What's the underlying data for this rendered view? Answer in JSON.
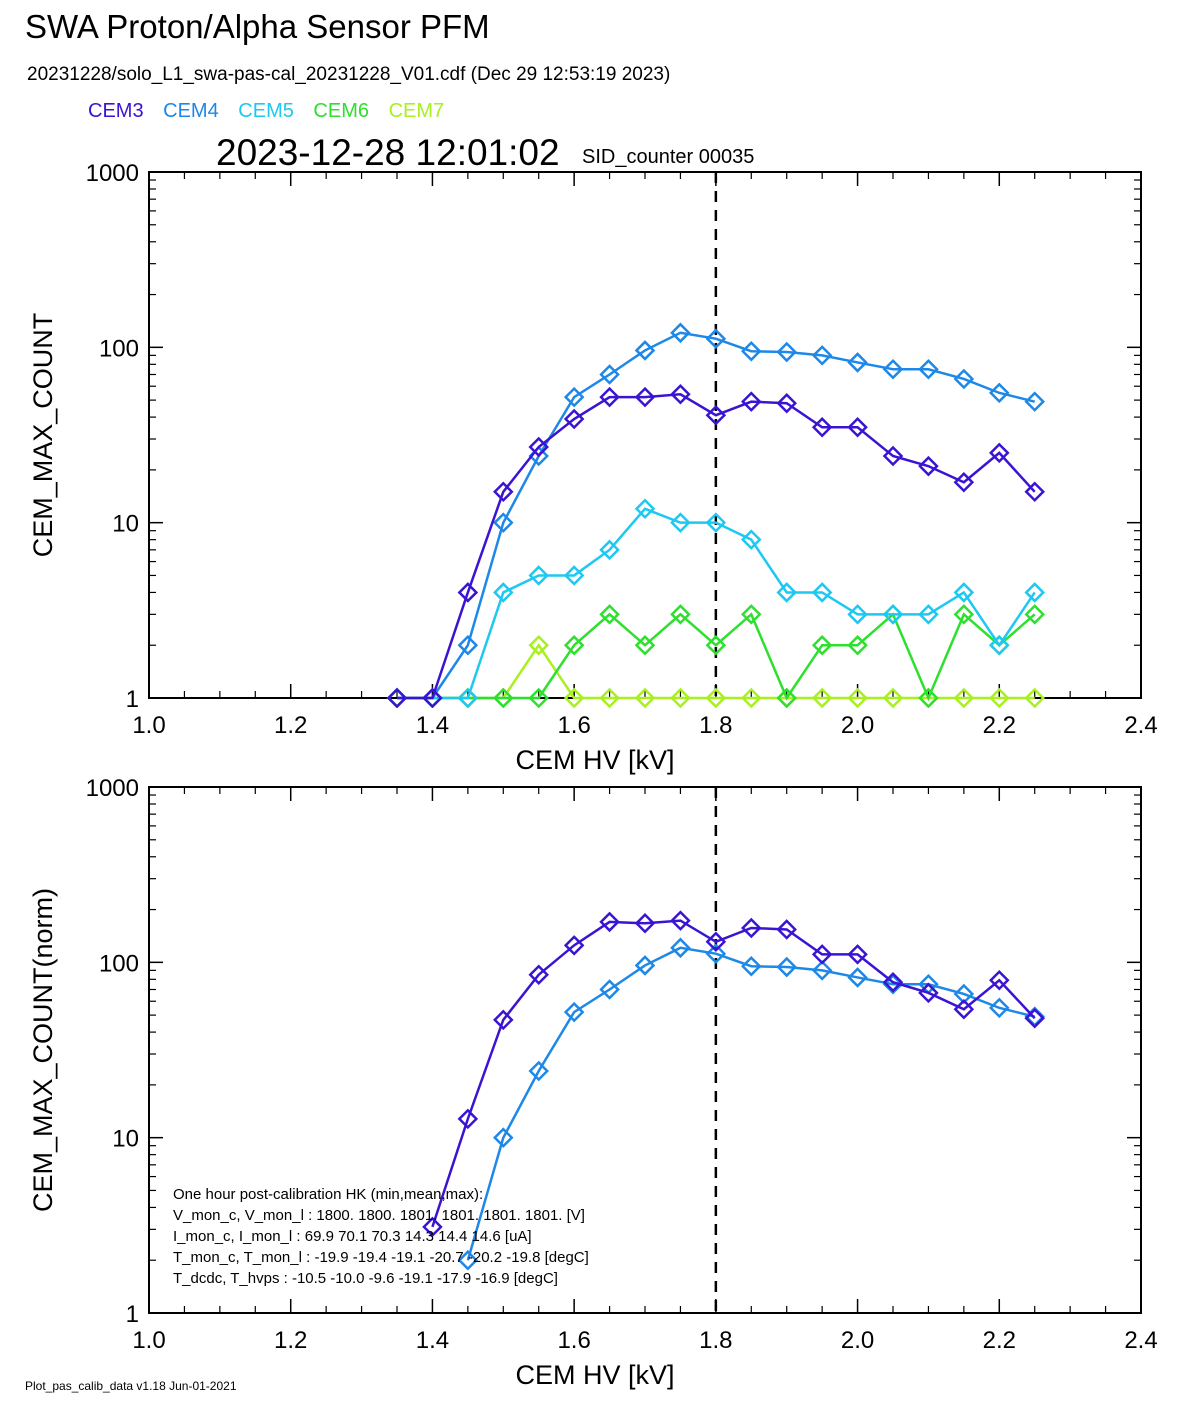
{
  "header": {
    "title": "SWA Proton/Alpha Sensor PFM",
    "file_line": "20231228/solo_L1_swa-pas-cal_20231228_V01.cdf  (Dec 29 12:53:19 2023)",
    "timestamp": "2023-12-28 12:01:02",
    "sid_label": "SID_counter 00035"
  },
  "legend": [
    {
      "name": "CEM3",
      "color": "#3a14d2"
    },
    {
      "name": "CEM4",
      "color": "#1e88e8"
    },
    {
      "name": "CEM5",
      "color": "#1ec8f0"
    },
    {
      "name": "CEM6",
      "color": "#2ee02e"
    },
    {
      "name": "CEM7",
      "color": "#a8f01e"
    }
  ],
  "hk_text": [
    "One hour post-calibration HK (min,mean,max):",
    "V_mon_c, V_mon_l :    1800.  1800.  1801.       1801.  1801.  1801.  [V]",
    "I_mon_c,  I_mon_l :      69.9   70.1   70.3         14.3   14.4   14.6  [uA]",
    "T_mon_c, T_mon_l :   -19.9  -19.4  -19.1        -20.7  -20.2  -19.8  [degC]",
    "T_dcdc,    T_hvps :     -10.5  -10.0   -9.6        -19.1  -17.9  -16.9  [degC]"
  ],
  "footer": "Plot_pas_calib_data v1.18 Jun-01-2021",
  "chart_data": [
    {
      "type": "line",
      "xlabel": "CEM HV [kV]",
      "ylabel": "CEM_MAX_COUNT",
      "xlim": [
        1.0,
        2.4
      ],
      "ylim": [
        1,
        1000
      ],
      "yscale": "log",
      "xticks": [
        "1.0",
        "1.2",
        "1.4",
        "1.6",
        "1.8",
        "2.0",
        "2.2",
        "2.4"
      ],
      "yticks": [
        "1",
        "10",
        "100",
        "1000"
      ],
      "vline_x": 1.8,
      "series": [
        {
          "name": "CEM3",
          "color": "#3a14d2",
          "x": [
            1.35,
            1.4,
            1.45,
            1.5,
            1.55,
            1.6,
            1.65,
            1.7,
            1.75,
            1.8,
            1.85,
            1.9,
            1.95,
            2.0,
            2.05,
            2.1,
            2.15,
            2.2,
            2.25
          ],
          "y": [
            1,
            1,
            4,
            15,
            27,
            39,
            52,
            52,
            54,
            41,
            49,
            48,
            35,
            35,
            24,
            21,
            17,
            25,
            15
          ]
        },
        {
          "name": "CEM4",
          "color": "#1e88e8",
          "x": [
            1.35,
            1.4,
            1.45,
            1.5,
            1.55,
            1.6,
            1.65,
            1.7,
            1.75,
            1.8,
            1.85,
            1.9,
            1.95,
            2.0,
            2.05,
            2.1,
            2.15,
            2.2,
            2.25
          ],
          "y": [
            1,
            1,
            2,
            10,
            24,
            52,
            70,
            96,
            121,
            112,
            95,
            94,
            90,
            82,
            75,
            75,
            66,
            55,
            49
          ]
        },
        {
          "name": "CEM5",
          "color": "#1ec8f0",
          "x": [
            1.35,
            1.4,
            1.45,
            1.5,
            1.55,
            1.6,
            1.65,
            1.7,
            1.75,
            1.8,
            1.85,
            1.9,
            1.95,
            2.0,
            2.05,
            2.1,
            2.15,
            2.2,
            2.25
          ],
          "y": [
            1,
            1,
            1,
            4,
            5,
            5,
            7,
            12,
            10,
            10,
            8,
            4,
            4,
            3,
            3,
            3,
            4,
            2,
            4
          ]
        },
        {
          "name": "CEM6",
          "color": "#2ee02e",
          "x": [
            1.35,
            1.4,
            1.45,
            1.5,
            1.55,
            1.6,
            1.65,
            1.7,
            1.75,
            1.8,
            1.85,
            1.9,
            1.95,
            2.0,
            2.05,
            2.1,
            2.15,
            2.2,
            2.25
          ],
          "y": [
            1,
            1,
            1,
            1,
            1,
            2,
            3,
            2,
            3,
            2,
            3,
            1,
            2,
            2,
            3,
            1,
            3,
            2,
            3
          ]
        },
        {
          "name": "CEM7",
          "color": "#a8f01e",
          "x": [
            1.35,
            1.4,
            1.45,
            1.5,
            1.55,
            1.6,
            1.65,
            1.7,
            1.75,
            1.8,
            1.85,
            1.9,
            1.95,
            2.0,
            2.05,
            2.1,
            2.15,
            2.2,
            2.25
          ],
          "y": [
            1,
            1,
            1,
            1,
            2,
            1,
            1,
            1,
            1,
            1,
            1,
            1,
            1,
            1,
            1,
            1,
            1,
            1,
            1
          ]
        }
      ]
    },
    {
      "type": "line",
      "xlabel": "CEM HV [kV]",
      "ylabel": "CEM_MAX_COUNT(norm)",
      "xlim": [
        1.0,
        2.4
      ],
      "ylim": [
        1,
        1000
      ],
      "yscale": "log",
      "xticks": [
        "1.0",
        "1.2",
        "1.4",
        "1.6",
        "1.8",
        "2.0",
        "2.2",
        "2.4"
      ],
      "yticks": [
        "1",
        "10",
        "100",
        "1000"
      ],
      "vline_x": 1.8,
      "series": [
        {
          "name": "CEM3",
          "color": "#3a14d2",
          "x": [
            1.4,
            1.45,
            1.5,
            1.55,
            1.6,
            1.65,
            1.7,
            1.75,
            1.8,
            1.85,
            1.9,
            1.95,
            2.0,
            2.05,
            2.1,
            2.15,
            2.2,
            2.25
          ],
          "y": [
            3.1,
            12.8,
            47,
            85,
            125,
            170,
            167,
            173,
            131,
            157,
            154,
            111,
            111,
            77,
            67,
            54,
            79,
            48
          ]
        },
        {
          "name": "CEM4",
          "color": "#1e88e8",
          "x": [
            1.45,
            1.5,
            1.55,
            1.6,
            1.65,
            1.7,
            1.75,
            1.8,
            1.85,
            1.9,
            1.95,
            2.0,
            2.05,
            2.1,
            2.15,
            2.2,
            2.25
          ],
          "y": [
            2,
            10,
            24,
            52,
            70,
            96,
            121,
            112,
            95,
            94,
            90,
            82,
            75,
            75,
            66,
            55,
            49
          ]
        }
      ]
    }
  ]
}
